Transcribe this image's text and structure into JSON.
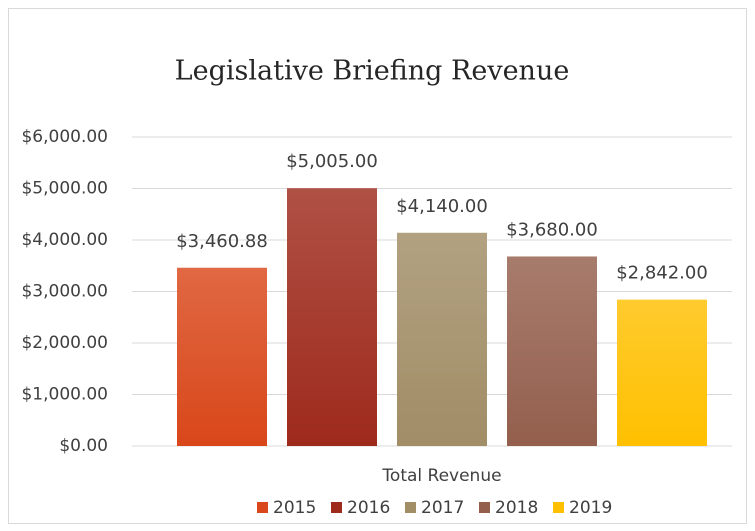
{
  "chart_data": {
    "type": "bar",
    "title": "Legislative Briefing Revenue",
    "categories": [
      "Total Revenue"
    ],
    "series": [
      {
        "name": "2015",
        "color": "#d9471a",
        "values": [
          3460.88
        ],
        "value_labels": [
          "$3,460.88"
        ]
      },
      {
        "name": "2016",
        "color": "#9e2a1c",
        "values": [
          5005
        ],
        "value_labels": [
          "$5,005.00"
        ]
      },
      {
        "name": "2017",
        "color": "#a18d66",
        "values": [
          4140
        ],
        "value_labels": [
          "$4,140.00"
        ]
      },
      {
        "name": "2018",
        "color": "#945f4d",
        "values": [
          3680
        ],
        "value_labels": [
          "$3,680.00"
        ]
      },
      {
        "name": "2019",
        "color": "#ffc000",
        "values": [
          2842
        ],
        "value_labels": [
          "$2,842.00"
        ]
      }
    ],
    "ylim": [
      0,
      6000
    ],
    "yticks": [
      {
        "value": 0,
        "label": "$0.00"
      },
      {
        "value": 1000,
        "label": "$1,000.00"
      },
      {
        "value": 2000,
        "label": "$2,000.00"
      },
      {
        "value": 3000,
        "label": "$3,000.00"
      },
      {
        "value": 4000,
        "label": "$4,000.00"
      },
      {
        "value": 5000,
        "label": "$5,000.00"
      },
      {
        "value": 6000,
        "label": "$6,000.00"
      }
    ],
    "grid": true,
    "legend": "bottom"
  }
}
